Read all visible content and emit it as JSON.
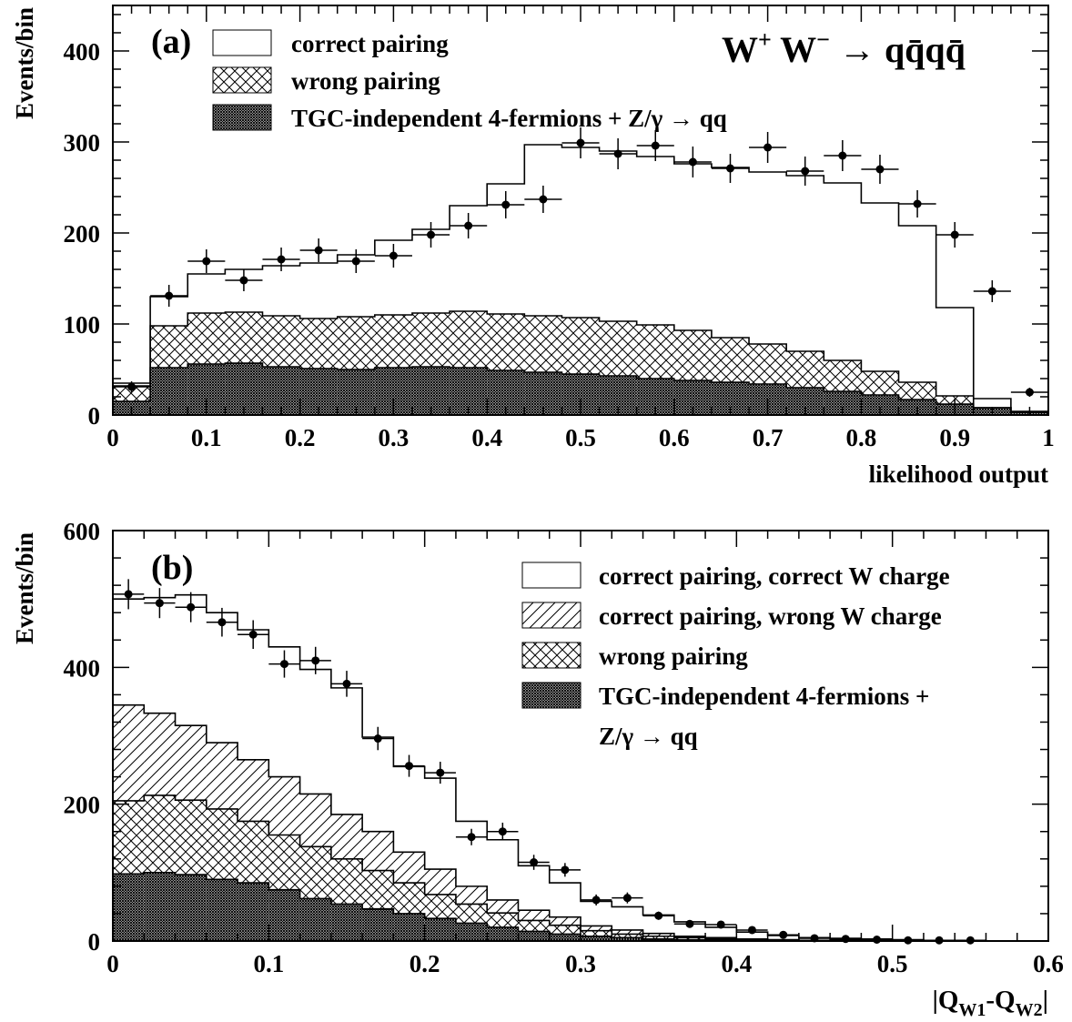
{
  "chart_data": [
    {
      "panel_label": "(a)",
      "type": "histogram",
      "process_title": {
        "prefix": "W",
        "sup1": "+",
        "mid": " W",
        "sup2": "−",
        "arrow": " → ",
        "final": "qq̄qq̄"
      },
      "xlabel": "likelihood output",
      "ylabel": "Events/bin",
      "xlim": [
        0,
        1
      ],
      "ylim": [
        0,
        450
      ],
      "xticks": [
        "0",
        "0.1",
        "0.2",
        "0.3",
        "0.4",
        "0.5",
        "0.6",
        "0.7",
        "0.8",
        "0.9",
        "1"
      ],
      "yticks": [
        "0",
        "100",
        "200",
        "300",
        "400"
      ],
      "bin_width": 0.04,
      "bin_edges": [
        0,
        0.04,
        0.08,
        0.12,
        0.16,
        0.2,
        0.24,
        0.28,
        0.32,
        0.36,
        0.4,
        0.44,
        0.48,
        0.52,
        0.56,
        0.6,
        0.64,
        0.68,
        0.72,
        0.76,
        0.8,
        0.84,
        0.88,
        0.92,
        0.96,
        1.0
      ],
      "legend": {
        "position": "top-left",
        "entries": [
          {
            "label": "correct pairing",
            "pattern": "open"
          },
          {
            "label": "wrong pairing",
            "pattern": "crosshatch"
          },
          {
            "label": "TGC-independent 4-fermions + Z/γ → qq",
            "pattern": "dense"
          }
        ]
      },
      "series": [
        {
          "name": "TGC-independent 4-fermions + Z/γ → qq",
          "pattern": "dense",
          "values": [
            15,
            52,
            56,
            57,
            53,
            51,
            50,
            52,
            53,
            52,
            49,
            47,
            45,
            43,
            40,
            38,
            36,
            34,
            30,
            26,
            22,
            17,
            12,
            8,
            4
          ]
        },
        {
          "name": "wrong pairing",
          "pattern": "crosshatch",
          "values": [
            32,
            98,
            112,
            113,
            109,
            106,
            108,
            110,
            112,
            114,
            111,
            109,
            107,
            103,
            99,
            93,
            85,
            78,
            70,
            60,
            48,
            36,
            21,
            8,
            3
          ]
        },
        {
          "name": "correct pairing",
          "pattern": "open",
          "values": [
            35,
            130,
            155,
            160,
            164,
            167,
            176,
            192,
            204,
            230,
            254,
            297,
            294,
            290,
            284,
            276,
            272,
            267,
            263,
            255,
            233,
            208,
            118,
            18,
            3
          ]
        }
      ],
      "data_points": {
        "x": [
          0.02,
          0.06,
          0.1,
          0.14,
          0.18,
          0.22,
          0.26,
          0.3,
          0.34,
          0.38,
          0.42,
          0.46,
          0.5,
          0.54,
          0.58,
          0.62,
          0.66,
          0.7,
          0.74,
          0.78,
          0.82,
          0.86,
          0.9,
          0.94,
          0.98
        ],
        "y": [
          31,
          131,
          169,
          148,
          171,
          181,
          169,
          175,
          198,
          208,
          231,
          237,
          299,
          287,
          296,
          278,
          271,
          294,
          268,
          285,
          270,
          232,
          198,
          136,
          25
        ],
        "err": [
          6,
          12,
          13,
          12,
          13,
          13,
          13,
          13,
          14,
          14,
          15,
          15,
          17,
          17,
          17,
          17,
          16,
          17,
          16,
          17,
          16,
          15,
          14,
          12,
          5
        ]
      }
    },
    {
      "panel_label": "(b)",
      "type": "histogram",
      "xlabel": {
        "prefix": "|Q",
        "sub1": "W1",
        "mid": "-Q",
        "sub2": "W2",
        "suffix": "|"
      },
      "ylabel": "Events/bin",
      "xlim": [
        0,
        0.6
      ],
      "ylim": [
        0,
        600
      ],
      "xticks": [
        "0",
        "0.1",
        "0.2",
        "0.3",
        "0.4",
        "0.5",
        "0.6"
      ],
      "yticks": [
        "0",
        "200",
        "400",
        "600"
      ],
      "bin_width": 0.02,
      "bin_edges": [
        0,
        0.02,
        0.04,
        0.06,
        0.08,
        0.1,
        0.12,
        0.14,
        0.16,
        0.18,
        0.2,
        0.22,
        0.24,
        0.26,
        0.28,
        0.3,
        0.32,
        0.34,
        0.36,
        0.38,
        0.4,
        0.42,
        0.44,
        0.46,
        0.48,
        0.5,
        0.52,
        0.54,
        0.56,
        0.58,
        0.6
      ],
      "legend": {
        "position": "top-right",
        "entries": [
          {
            "label": "correct pairing, correct W charge",
            "pattern": "open"
          },
          {
            "label": "correct pairing, wrong W charge",
            "pattern": "diagonal"
          },
          {
            "label": "wrong pairing",
            "pattern": "crosshatch"
          },
          {
            "label": "TGC-independent 4-fermions +",
            "label_line2": "Z/γ → qq",
            "pattern": "dense"
          }
        ]
      },
      "series": [
        {
          "name": "TGC-independent 4-fermions + Z/γ → qq",
          "pattern": "dense",
          "values": [
            98,
            100,
            97,
            90,
            85,
            75,
            62,
            54,
            47,
            40,
            33,
            26,
            20,
            14,
            10,
            7,
            5,
            3,
            2,
            1,
            1,
            1,
            0,
            0,
            0,
            0,
            0,
            0,
            0,
            0
          ]
        },
        {
          "name": "wrong pairing",
          "pattern": "crosshatch",
          "values": [
            205,
            213,
            206,
            193,
            175,
            155,
            138,
            120,
            103,
            85,
            68,
            54,
            41,
            30,
            23,
            15,
            10,
            7,
            5,
            3,
            2,
            1,
            1,
            0,
            0,
            0,
            0,
            0,
            0,
            0
          ]
        },
        {
          "name": "correct pairing, wrong W charge",
          "pattern": "diagonal",
          "values": [
            345,
            333,
            315,
            290,
            265,
            240,
            215,
            185,
            160,
            130,
            105,
            80,
            60,
            45,
            35,
            22,
            16,
            11,
            7,
            5,
            3,
            2,
            1,
            1,
            0,
            0,
            0,
            0,
            0,
            0
          ]
        },
        {
          "name": "correct pairing, correct W charge",
          "pattern": "open",
          "values": [
            500,
            502,
            506,
            480,
            455,
            430,
            397,
            370,
            298,
            255,
            238,
            175,
            148,
            110,
            85,
            58,
            50,
            38,
            28,
            20,
            13,
            8,
            5,
            4,
            3,
            2,
            1,
            1,
            0,
            0
          ]
        }
      ],
      "data_points": {
        "x": [
          0.01,
          0.03,
          0.05,
          0.07,
          0.09,
          0.11,
          0.13,
          0.15,
          0.17,
          0.19,
          0.21,
          0.23,
          0.25,
          0.27,
          0.29,
          0.31,
          0.33,
          0.35,
          0.37,
          0.39,
          0.41,
          0.43,
          0.45,
          0.47,
          0.49,
          0.51,
          0.53,
          0.55,
          0.57,
          0.59
        ],
        "y": [
          507,
          494,
          488,
          466,
          448,
          405,
          410,
          376,
          296,
          256,
          246,
          152,
          160,
          115,
          104,
          60,
          63,
          37,
          25,
          24,
          16,
          9,
          4,
          3,
          2,
          1,
          1,
          1,
          0,
          0
        ],
        "err": [
          22,
          22,
          22,
          21,
          21,
          20,
          20,
          19,
          17,
          16,
          16,
          12,
          13,
          11,
          10,
          8,
          8,
          6,
          5,
          5,
          4,
          3,
          2,
          2,
          1,
          1,
          1,
          1,
          0,
          0
        ]
      }
    }
  ]
}
